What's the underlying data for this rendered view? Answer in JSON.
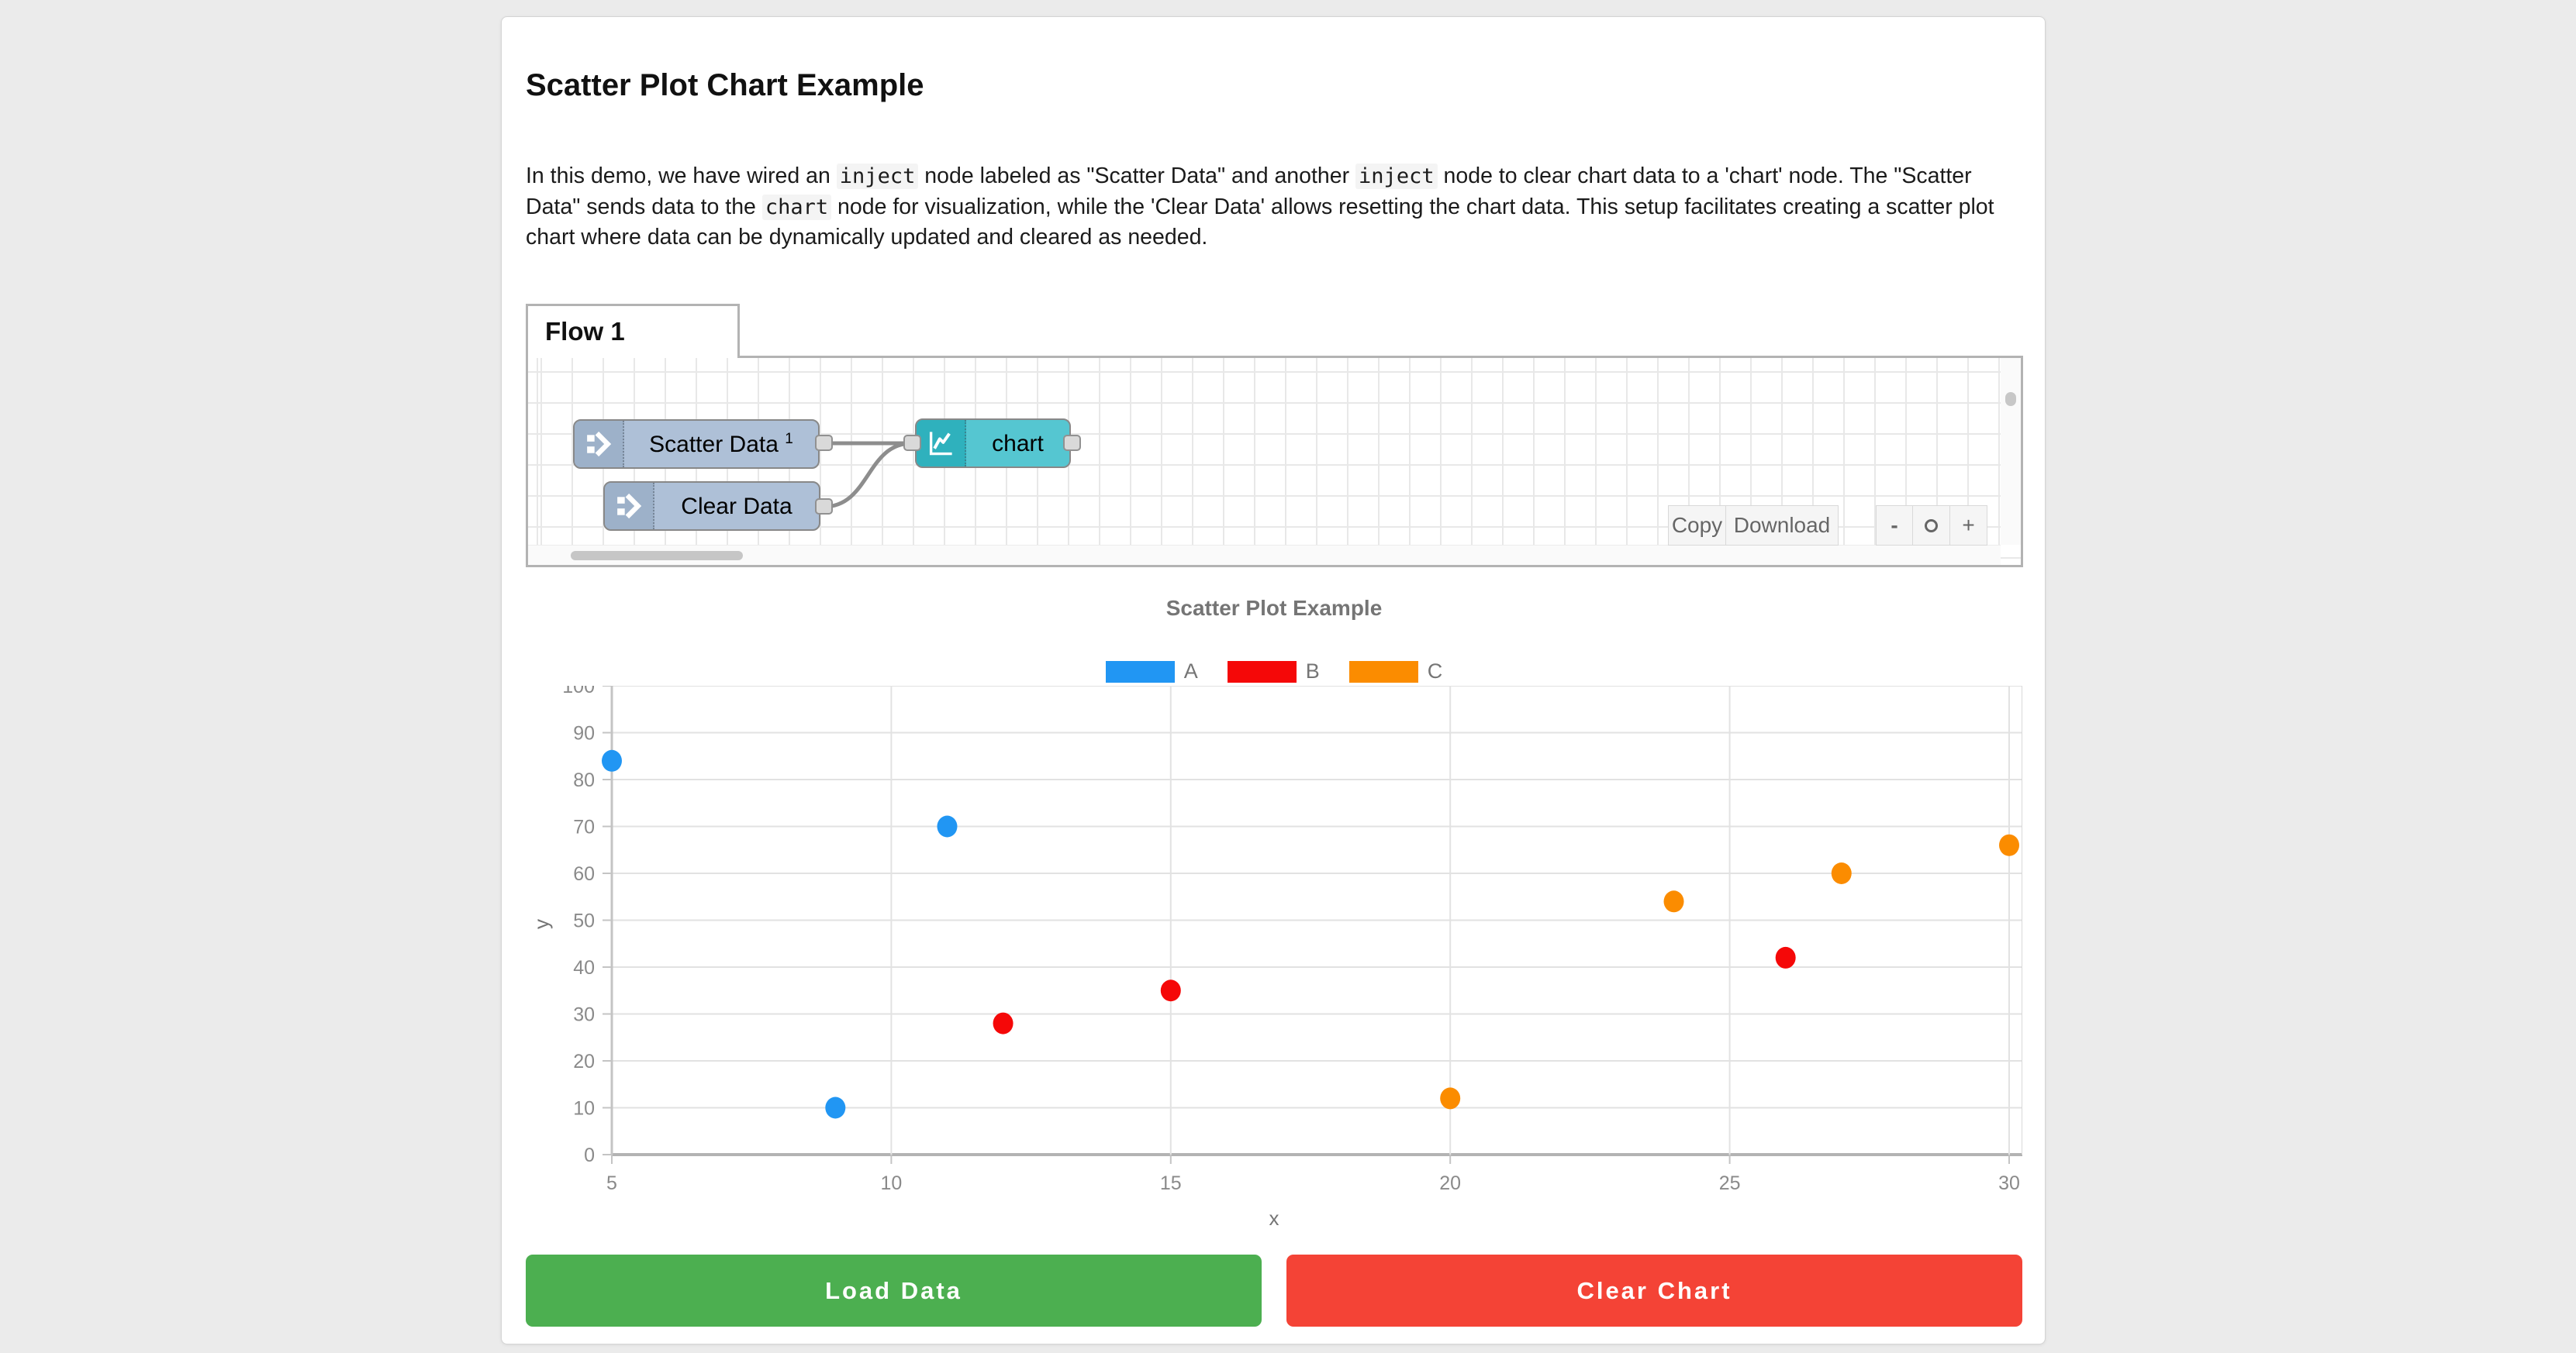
{
  "header": {
    "title": "Scatter Plot Chart Example"
  },
  "intro": {
    "runs": [
      {
        "text": "In this demo, we have wired an ",
        "code": false
      },
      {
        "text": "inject",
        "code": true
      },
      {
        "text": " node labeled as \"Scatter Data\" and another ",
        "code": false
      },
      {
        "text": "inject",
        "code": true
      },
      {
        "text": " node to clear chart data to a 'chart' node. The \"Scatter Data\" sends data to the ",
        "code": false
      },
      {
        "text": "chart",
        "code": true
      },
      {
        "text": " node for visualization, while the 'Clear Data' allows resetting the chart data. This setup facilitates creating a scatter plot chart where data can be dynamically updated and cleared as needed.",
        "code": false
      }
    ]
  },
  "flow": {
    "tab_label": "Flow 1",
    "nodes": [
      {
        "label": "Scatter Data",
        "superscript": "1",
        "type": "inject"
      },
      {
        "label": "Clear Data",
        "superscript": "",
        "type": "inject"
      },
      {
        "label": "chart",
        "superscript": "",
        "type": "chart"
      }
    ],
    "node_colors": {
      "inject_body": "#aec0d7",
      "inject_icon": "#9db1c9",
      "chart_body": "#55c6d1",
      "chart_icon": "#2fb1bd"
    },
    "toolbar": {
      "copy_label": "Copy",
      "download_label": "Download"
    },
    "zoom_controls": {
      "zoom_out_label": "-",
      "zoom_in_label": "+",
      "zoom_reset_icon": "circle-outline"
    }
  },
  "chart_data": {
    "type": "scatter",
    "title": "Scatter Plot Example",
    "xlabel": "x",
    "ylabel": "y",
    "xlim": [
      5,
      30
    ],
    "ylim": [
      0,
      100
    ],
    "x_ticks": [
      5,
      10,
      15,
      20,
      25,
      30
    ],
    "y_ticks": [
      0,
      10,
      20,
      30,
      40,
      50,
      60,
      70,
      80,
      90,
      100
    ],
    "grid": true,
    "legend_position": "top",
    "series": [
      {
        "name": "A",
        "color": "#2196f3",
        "points": [
          [
            5,
            84
          ],
          [
            9,
            10
          ],
          [
            11,
            70
          ]
        ]
      },
      {
        "name": "B",
        "color": "#f50808",
        "points": [
          [
            12,
            28
          ],
          [
            15,
            35
          ],
          [
            26,
            42
          ]
        ]
      },
      {
        "name": "C",
        "color": "#fb8c00",
        "points": [
          [
            20,
            12
          ],
          [
            24,
            54
          ],
          [
            27,
            60
          ],
          [
            30,
            66
          ]
        ]
      }
    ]
  },
  "actions": {
    "load": {
      "label": "Load Data",
      "color": "#4caf50"
    },
    "clear": {
      "label": "Clear Chart",
      "color": "#f44336"
    }
  },
  "colors": {
    "page_bg": "#ebebeb",
    "card_bg": "#ffffff"
  }
}
